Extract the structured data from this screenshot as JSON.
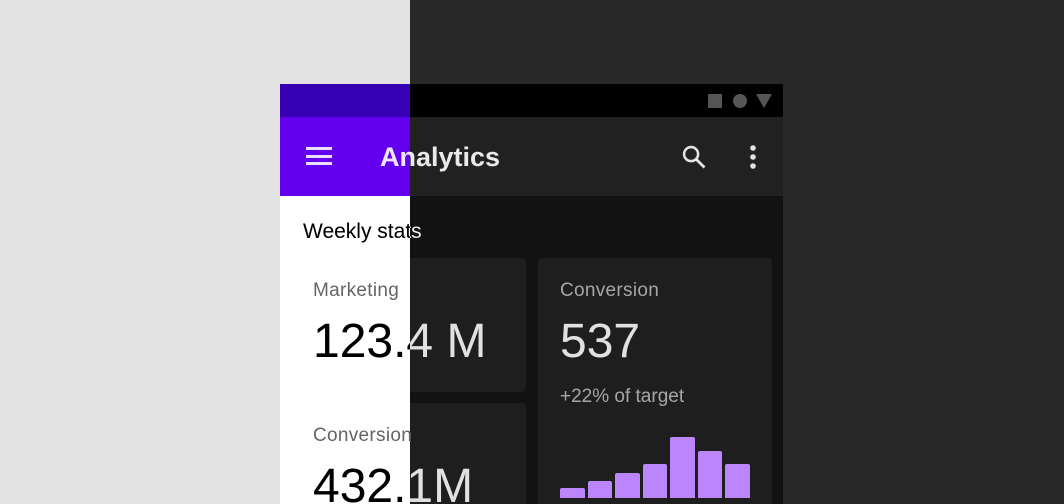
{
  "status_bar": {
    "icons": [
      "square-icon",
      "circle-icon",
      "triangle-icon"
    ]
  },
  "app_bar": {
    "title": "Analytics",
    "menu_icon": "hamburger-menu-icon",
    "actions": [
      "search-icon",
      "more-vert-icon"
    ]
  },
  "section_title": "Weekly stats",
  "cards": [
    {
      "label": "Marketing",
      "value": "123.4 M"
    },
    {
      "label": "Conversion",
      "value": "537",
      "note": "+22% of target"
    },
    {
      "label": "Conversion",
      "value": "432.1M"
    }
  ],
  "chart_data": {
    "type": "bar",
    "values": [
      10,
      17,
      25,
      34,
      61,
      47,
      34
    ],
    "color": "#bb86fc"
  },
  "colors": {
    "light_primary": "#6200ee",
    "light_primary_variant": "#3700b3",
    "dark_surface": "#121212",
    "dark_accent": "#bb86fc"
  }
}
